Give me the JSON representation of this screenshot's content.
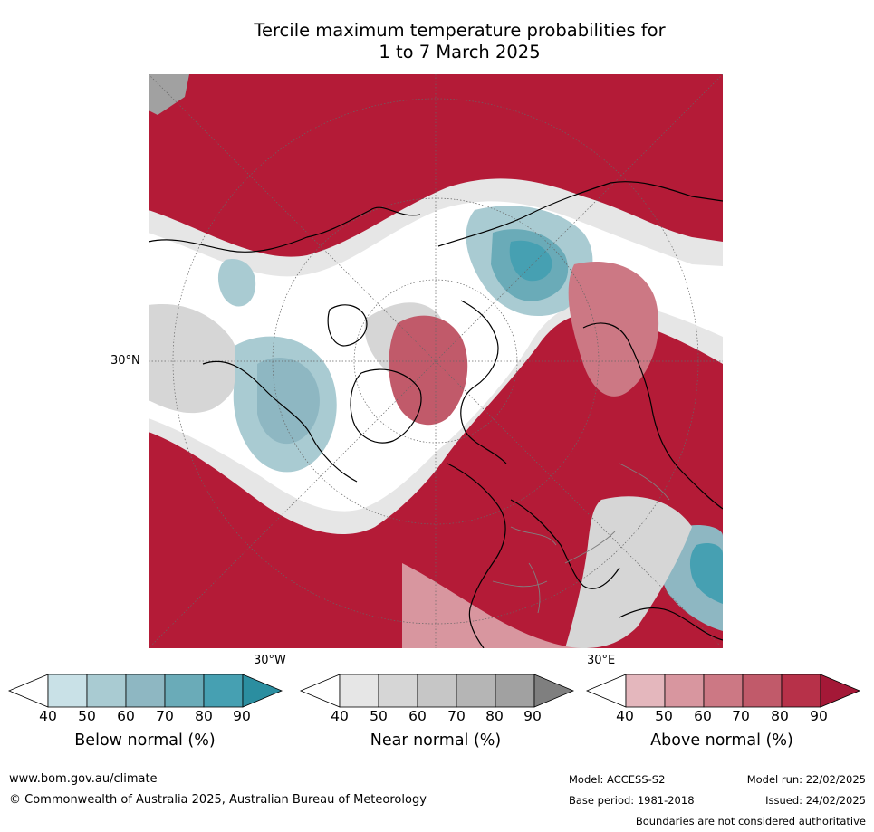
{
  "title_line1": "Tercile maximum temperature probabilities for",
  "title_line2": "1 to 7 March 2025",
  "map": {
    "lat_label": "30°N",
    "lon_label_west": "30°W",
    "lon_label_east": "30°E"
  },
  "colorbars": [
    {
      "id": "below",
      "label": "Below normal (%)",
      "ticks": [
        "40",
        "50",
        "60",
        "70",
        "80",
        "90"
      ],
      "colors": [
        "#ffffff",
        "#c9e1e7",
        "#a9cbd2",
        "#8eb7c2",
        "#6aabb8",
        "#46a0b2",
        "#2b8ea0"
      ]
    },
    {
      "id": "near",
      "label": "Near normal (%)",
      "ticks": [
        "40",
        "50",
        "60",
        "70",
        "80",
        "90"
      ],
      "colors": [
        "#ffffff",
        "#e6e6e6",
        "#d6d6d6",
        "#c6c6c6",
        "#b5b5b5",
        "#a1a1a1",
        "#7f7f7f"
      ]
    },
    {
      "id": "above",
      "label": "Above normal (%)",
      "ticks": [
        "40",
        "50",
        "60",
        "70",
        "80",
        "90"
      ],
      "colors": [
        "#ffffff",
        "#e4b7bd",
        "#d8969f",
        "#cc7884",
        "#c15a6a",
        "#b73149",
        "#a41837"
      ]
    }
  ],
  "footer": {
    "website": "www.bom.gov.au/climate",
    "copyright": "© Commonwealth of Australia 2025, Australian Bureau of Meteorology",
    "model": "Model: ACCESS-S2",
    "base_period": "Base period: 1981-2018",
    "model_run": "Model run: 22/02/2025",
    "issued": "Issued: 24/02/2025",
    "disclaimer": "Boundaries are not considered authoritative"
  }
}
